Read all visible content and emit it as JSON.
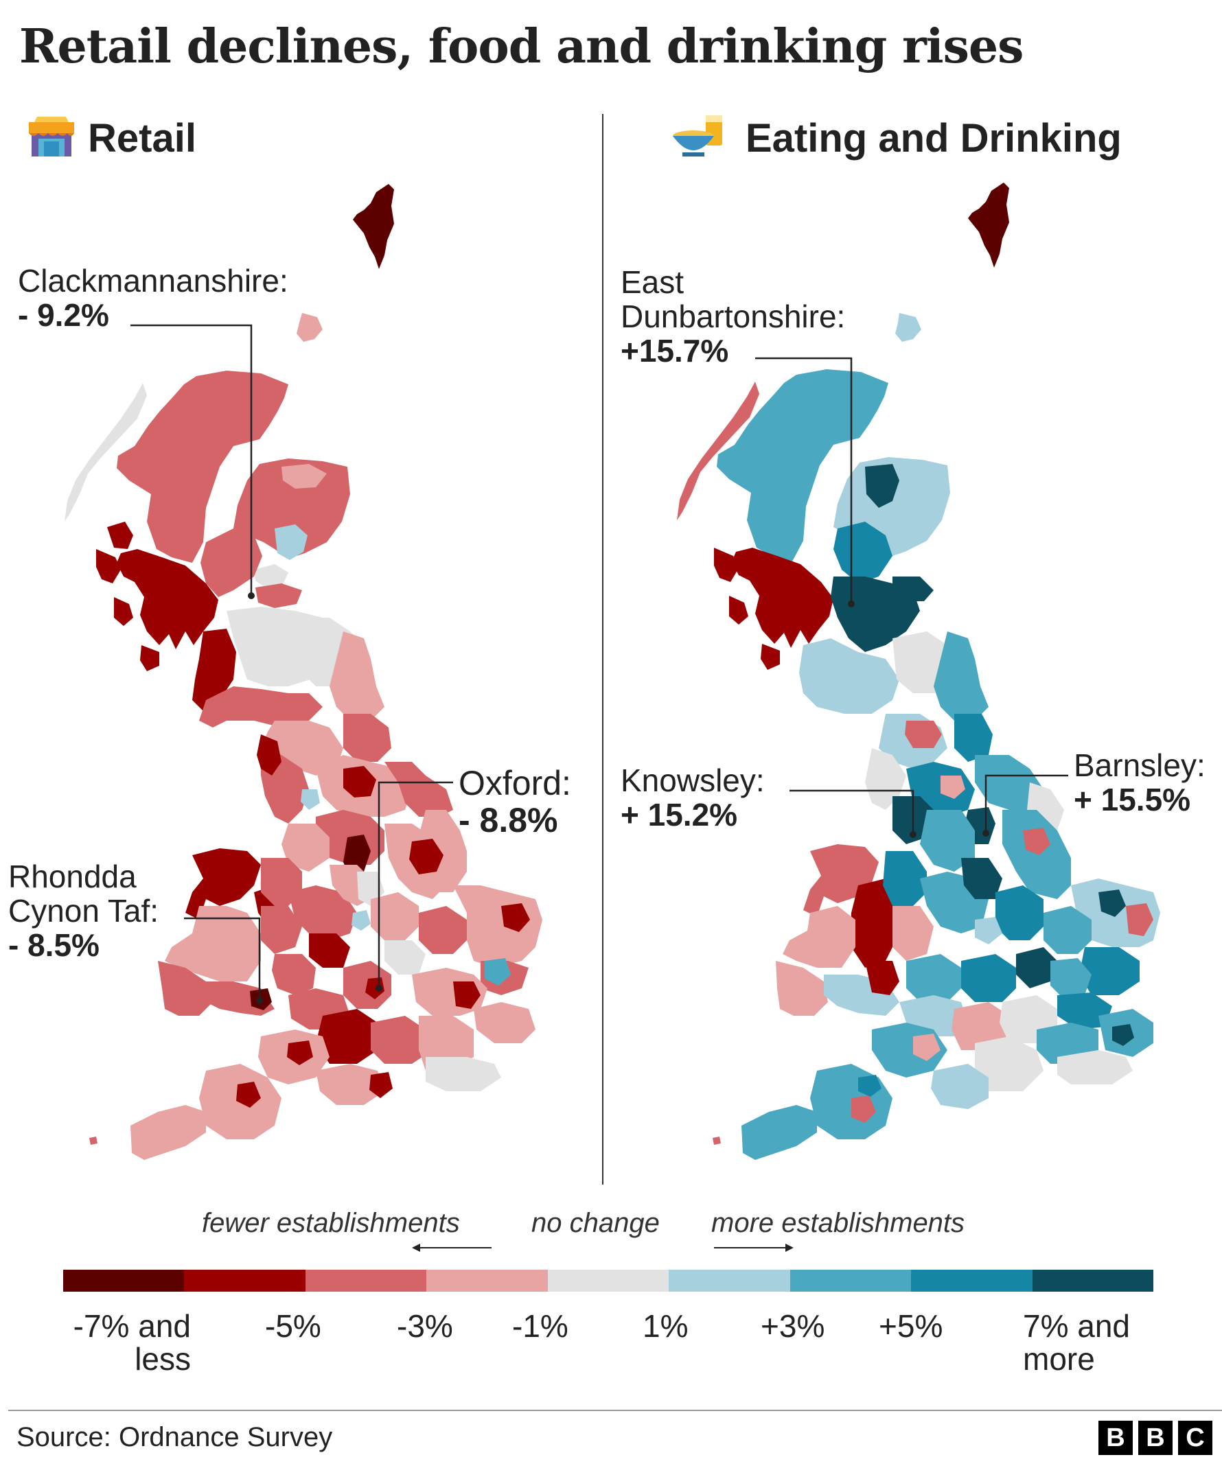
{
  "title": "Retail declines, food and drinking rises",
  "panels": [
    {
      "name": "Retail",
      "icon": "shop-icon"
    },
    {
      "name": "Eating and Drinking",
      "icon": "food-drink-icon"
    }
  ],
  "annotations": {
    "clackmannanshire": {
      "name": "Clackmannanshire:",
      "value": "- 9.2%"
    },
    "oxford": {
      "name": "Oxford:",
      "value": "- 8.8%"
    },
    "rhondda": {
      "name1": "Rhondda",
      "name2": "Cynon Taf:",
      "value": "- 8.5%"
    },
    "east_dunbartonshire": {
      "name1": "East",
      "name2": "Dunbartonshire:",
      "value": "+15.7%"
    },
    "knowsley": {
      "name": "Knowsley:",
      "value": "+ 15.2%"
    },
    "barnsley": {
      "name": "Barnsley:",
      "value": "+ 15.5%"
    }
  },
  "legend": {
    "fewer": "fewer establishments",
    "no_change": "no change",
    "more": "more establishments",
    "colors": [
      "#5c0000",
      "#9a0000",
      "#d46468",
      "#e8a3a3",
      "#e2e2e2",
      "#a6d0de",
      "#4aa9c1",
      "#1686a6",
      "#0c4c5c"
    ],
    "ticks": [
      {
        "line1": "-7% and",
        "line2": "less"
      },
      {
        "line1": "-5%"
      },
      {
        "line1": "-3%"
      },
      {
        "line1": "-1%"
      },
      {
        "line1": "1%"
      },
      {
        "line1": "+3%"
      },
      {
        "line1": "+5%"
      },
      {
        "line1": "7% and",
        "line2": "more"
      }
    ]
  },
  "source": "Source: Ordnance Survey",
  "logo": [
    "B",
    "B",
    "C"
  ]
}
